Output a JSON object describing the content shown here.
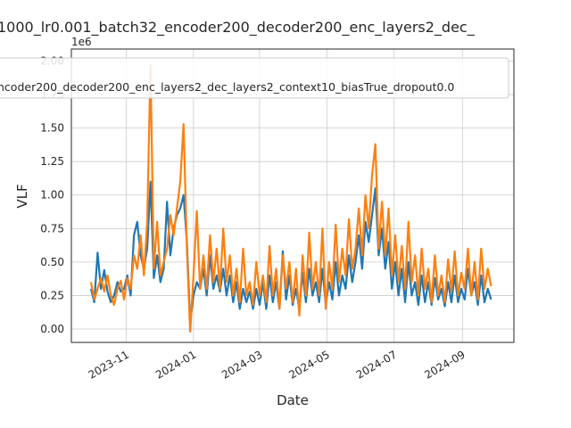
{
  "chart_data": {
    "type": "line",
    "title": "1000_lr0.001_batch32_encoder200_decoder200_enc_layers2_dec_",
    "offset_label": "1e6",
    "xlabel": "Date",
    "ylabel": "VLF",
    "legend_label": "ncoder200_decoder200_enc_layers2_dec_layers2_context10_biasTrue_dropout0.0",
    "grid": true,
    "xlim": [
      -5.93,
      127.9
    ],
    "xticks": [
      {
        "value": 10.67,
        "label": "2023-11"
      },
      {
        "value": 31,
        "label": "2024-01"
      },
      {
        "value": 51,
        "label": "2024-03"
      },
      {
        "value": 71.33,
        "label": "2024-05"
      },
      {
        "value": 91.67,
        "label": "2024-07"
      },
      {
        "value": 112.33,
        "label": "2024-09"
      }
    ],
    "ylim": [
      -0.1,
      2.09
    ],
    "yticks": [
      {
        "value": 0,
        "label": "0.00"
      },
      0.25,
      {
        "value": 0.5,
        "label": "0.50"
      },
      0.75,
      {
        "value": 1,
        "label": "1.00"
      },
      1.25,
      {
        "value": 1.5,
        "label": "1.50"
      },
      1.75,
      {
        "value": 2,
        "label": "2.00"
      }
    ],
    "series": [
      {
        "color": "#1f77b4",
        "values": [
          0.3,
          0.2,
          0.57,
          0.3,
          0.44,
          0.28,
          0.2,
          0.25,
          0.35,
          0.28,
          0.3,
          0.4,
          0.25,
          0.7,
          0.8,
          0.55,
          0.45,
          0.6,
          1.1,
          0.38,
          0.55,
          0.35,
          0.45,
          0.95,
          0.55,
          0.75,
          0.85,
          0.9,
          1.0,
          0.65,
          0.05,
          0.25,
          0.35,
          0.3,
          0.45,
          0.25,
          0.55,
          0.3,
          0.4,
          0.28,
          0.45,
          0.25,
          0.4,
          0.2,
          0.35,
          0.15,
          0.3,
          0.2,
          0.28,
          0.15,
          0.3,
          0.18,
          0.35,
          0.15,
          0.4,
          0.2,
          0.35,
          0.15,
          0.58,
          0.22,
          0.4,
          0.18,
          0.3,
          0.15,
          0.42,
          0.2,
          0.45,
          0.25,
          0.35,
          0.2,
          0.45,
          0.18,
          0.35,
          0.22,
          0.5,
          0.25,
          0.4,
          0.3,
          0.55,
          0.35,
          0.5,
          0.7,
          0.45,
          0.8,
          0.65,
          0.85,
          1.05,
          0.55,
          0.75,
          0.45,
          0.65,
          0.3,
          0.5,
          0.25,
          0.45,
          0.2,
          0.5,
          0.25,
          0.35,
          0.18,
          0.4,
          0.2,
          0.35,
          0.18,
          0.38,
          0.22,
          0.3,
          0.17,
          0.35,
          0.2,
          0.4,
          0.2,
          0.3,
          0.22,
          0.45,
          0.25,
          0.35,
          0.18,
          0.4,
          0.2,
          0.3,
          0.22
        ]
      },
      {
        "color": "#ff7f0e",
        "values": [
          0.35,
          0.22,
          0.3,
          0.38,
          0.28,
          0.4,
          0.25,
          0.18,
          0.3,
          0.36,
          0.22,
          0.38,
          0.3,
          0.55,
          0.45,
          0.7,
          0.4,
          0.8,
          1.97,
          0.45,
          0.8,
          0.4,
          0.5,
          0.6,
          0.85,
          0.7,
          0.9,
          1.1,
          1.53,
          0.6,
          -0.02,
          0.4,
          0.88,
          0.3,
          0.55,
          0.3,
          0.7,
          0.35,
          0.6,
          0.3,
          0.75,
          0.35,
          0.55,
          0.25,
          0.45,
          0.2,
          0.6,
          0.25,
          0.35,
          0.18,
          0.5,
          0.25,
          0.4,
          0.2,
          0.62,
          0.25,
          0.45,
          0.15,
          0.55,
          0.3,
          0.5,
          0.2,
          0.45,
          0.1,
          0.55,
          0.25,
          0.72,
          0.3,
          0.5,
          0.25,
          0.75,
          0.15,
          0.5,
          0.3,
          0.78,
          0.35,
          0.6,
          0.4,
          0.82,
          0.45,
          0.6,
          0.9,
          0.55,
          1.0,
          0.75,
          1.15,
          1.38,
          0.6,
          0.95,
          0.55,
          0.9,
          0.4,
          0.7,
          0.35,
          0.62,
          0.3,
          0.8,
          0.35,
          0.55,
          0.25,
          0.6,
          0.3,
          0.45,
          0.2,
          0.55,
          0.25,
          0.4,
          0.2,
          0.52,
          0.28,
          0.58,
          0.25,
          0.42,
          0.3,
          0.6,
          0.25,
          0.5,
          0.22,
          0.6,
          0.3,
          0.45,
          0.32
        ]
      }
    ]
  }
}
